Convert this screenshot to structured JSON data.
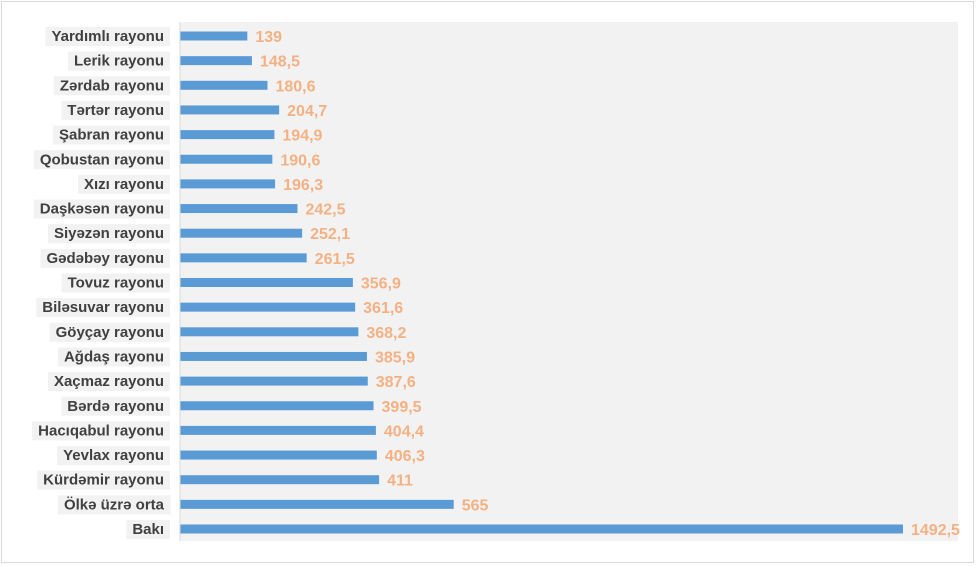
{
  "chart_data": {
    "type": "bar",
    "orientation": "horizontal",
    "title": "",
    "xlabel": "",
    "ylabel": "",
    "grid": false,
    "legend": "none",
    "bar_color": "#5b9bd5",
    "label_color": "#f4b183",
    "plot_background": "#f2f2f2",
    "xlim": [
      0,
      1500
    ],
    "categories": [
      "Yardımlı rayonu",
      "Lerik rayonu",
      "Zərdab rayonu",
      "Tərtər rayonu",
      "Şabran rayonu",
      "Qobustan rayonu",
      "Xızı rayonu",
      "Daşkəsən rayonu",
      "Siyəzən rayonu",
      "Gədəbəy rayonu",
      "Tovuz rayonu",
      "Biləsuvar rayonu",
      "Göyçay rayonu",
      "Ağdaş rayonu",
      "Xaçmaz rayonu",
      "Bərdə rayonu",
      "Hacıqabul rayonu",
      "Yevlax rayonu",
      "Kürdəmir rayonu",
      "Ölkə üzrə orta",
      "Bakı"
    ],
    "values": [
      139,
      148.5,
      180.6,
      204.7,
      194.9,
      190.6,
      196.3,
      242.5,
      252.1,
      261.5,
      356.9,
      361.6,
      368.2,
      385.9,
      387.6,
      399.5,
      404.4,
      406.3,
      411,
      565,
      1492.5
    ],
    "value_labels": [
      "139",
      "148,5",
      "180,6",
      "204,7",
      "194,9",
      "190,6",
      "196,3",
      "242,5",
      "252,1",
      "261,5",
      "356,9",
      "361,6",
      "368,2",
      "385,9",
      "387,6",
      "399,5",
      "404,4",
      "406,3",
      "411",
      "565",
      "1492,5"
    ]
  }
}
